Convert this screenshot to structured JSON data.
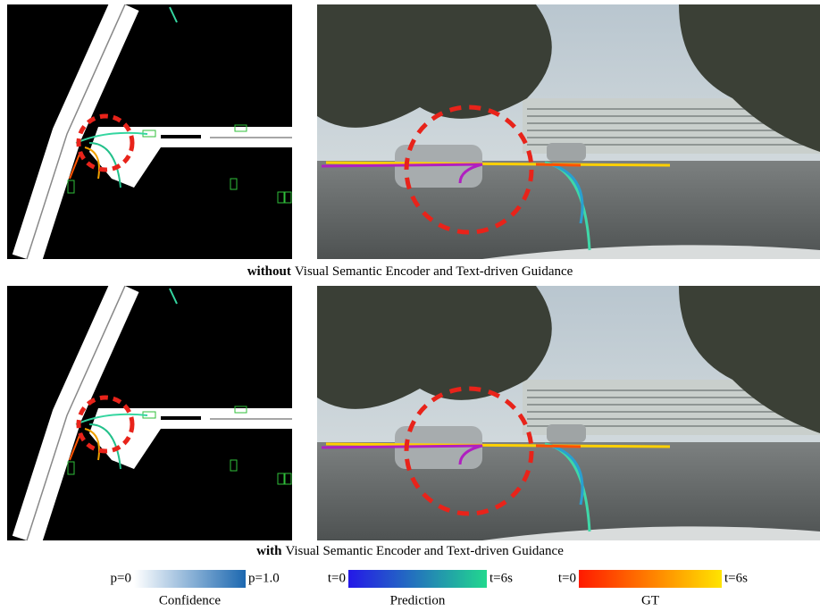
{
  "captions": [
    {
      "emphasis": "without",
      "text": "Visual Semantic Encoder and Text-driven Guidance"
    },
    {
      "emphasis": "with",
      "text": "Visual Semantic Encoder and Text-driven Guidance"
    }
  ],
  "legend": [
    {
      "left": "p=0",
      "right": "p=1.0",
      "label": "Confidence"
    },
    {
      "left": "t=0",
      "right": "t=6s",
      "label": "Prediction"
    },
    {
      "left": "t=0",
      "right": "t=6s",
      "label": "GT"
    }
  ]
}
